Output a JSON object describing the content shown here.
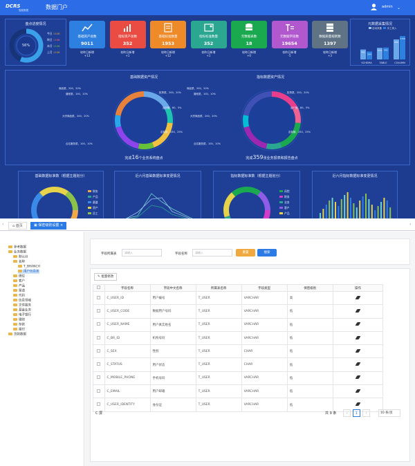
{
  "header": {
    "logo": "DCRS",
    "logo_sub": "智能数据",
    "title": "数据门户",
    "user": "admin"
  },
  "progress_panel": {
    "title": "盘点进度情况",
    "percent": "56%",
    "legend": [
      {
        "label": "今日",
        "value": "1108",
        "color": "#e6a23c"
      },
      {
        "label": "昨日",
        "value": "1108",
        "color": "#f56c6c"
      },
      {
        "label": "本月",
        "value": "1108",
        "color": "#67c23a"
      },
      {
        "label": "上月",
        "value": "1108",
        "color": "#e6a23c"
      }
    ]
  },
  "cards": [
    {
      "label": "基础资产总数",
      "value": "9011",
      "color": "#2d7fe0",
      "icon": "line-chart-icon",
      "sub1": "较昨日新增",
      "sub2": "+13"
    },
    {
      "label": "指标资产总数",
      "value": "352",
      "color": "#ea4b43",
      "icon": "bar-chart-icon",
      "sub1": "较昨日新增",
      "sub2": "+1"
    },
    {
      "label": "基础标准数量",
      "value": "1953",
      "color": "#ee8a28",
      "icon": "document-icon",
      "sub1": "较昨日新增",
      "sub2": "+12"
    },
    {
      "label": "指标标准数量",
      "value": "352",
      "color": "#2aa691",
      "icon": "image-icon",
      "sub1": "较昨日新增",
      "sub2": "+1"
    },
    {
      "label": "元数据表数",
      "value": "18",
      "color": "#1ba94f",
      "icon": "database-icon",
      "sub1": "较昨日新增",
      "sub2": "+0"
    },
    {
      "label": "元数据字段数",
      "value": "19654",
      "color": "#b258cf",
      "icon": "field-icon",
      "sub1": "较昨日新增",
      "sub2": "-5"
    },
    {
      "label": "数据质量规则数",
      "value": "1397",
      "color": "#5f7384",
      "icon": "server-icon",
      "sub1": "较昨日新增",
      "sub2": "+3"
    }
  ],
  "meta_panel": {
    "title": "元数据采集情况",
    "legend": [
      "自动采集",
      "手工录入"
    ],
    "categories": [
      "SCHEMA",
      "TABLE",
      "COLUMN"
    ]
  },
  "chart_data": [
    {
      "type": "bar",
      "title": "元数据采集情况",
      "categories": [
        "SCHEMA",
        "TABLE",
        "COLUMN"
      ],
      "series": [
        {
          "name": "自动采集",
          "values": [
            492,
            574,
            992
          ]
        },
        {
          "name": "手工录入",
          "values": [
            394,
            591,
            1159
          ]
        }
      ]
    },
    {
      "type": "pie",
      "title": "基础数据资产情况",
      "footer_pre": "完成",
      "footer_num": "16",
      "footer_post": "个业务系统盘点",
      "labels": [
        "商品质、200、20%",
        "普帐质、100、10%",
        "大宗商品质、200、20%",
        "合名服务质、100、10%",
        "权责质、200、20%",
        "运行管、80、5%",
        "定制服、250、25%"
      ]
    },
    {
      "type": "pie",
      "title": "指标数据资产情况",
      "footer_pre": "完成",
      "footer_num": "359",
      "footer_post": "张业务报表和报告盘点",
      "labels": [
        "商品质、200、20%",
        "普帐质、100、10%",
        "大宗商品质、200、20%",
        "合名服务质、100、10%",
        "权责质、200、20%",
        "运行管、80、5%",
        "定制服、250、25%"
      ]
    }
  ],
  "lower_panels": {
    "basic_std": "基础数据标准数（根据主题划分）",
    "basic_trend": "近六月基础数据标准变更情况",
    "index_std": "指标数据标准数（根据主题划分）",
    "index_trend": "近六月指标数据标准变更情况",
    "basic_legend": [
      "财务",
      "产品",
      "渠道",
      "资产",
      "员工"
    ],
    "index_legend": [
      "风险",
      "财务",
      "业务",
      "客户",
      "产品"
    ]
  },
  "tabs": [
    {
      "label": "首页"
    },
    {
      "label": "保密级别设置"
    }
  ],
  "tree": [
    "参考数据",
    "业务数据",
    "默认分",
    "名称",
    "T_BRANCH",
    "用户信息表",
    "借位",
    "客户",
    "产品",
    "渠道",
    "代码",
    "信息领域",
    "文件服务",
    "基金业务",
    "电子银行",
    "理财",
    "存款",
    "报付",
    "贷款数据"
  ],
  "search": {
    "label1": "字段所属表",
    "ph1": "请输入",
    "label2": "字段名称",
    "ph2": "请输入",
    "reset": "重置",
    "search": "搜索"
  },
  "toolbar": {
    "batch": "批量修改"
  },
  "table": {
    "headers": [
      "",
      "字段名称",
      "字段中文名称",
      "所属表名称",
      "字段类型",
      "保密级别",
      "操作"
    ],
    "rows": [
      [
        "C_USER_ID",
        "用户编号",
        "T_USER",
        "VARCHAR",
        "高"
      ],
      [
        "C_USER_CODE",
        "数据用户号码",
        "T_USER",
        "VARCHAR",
        "低"
      ],
      [
        "C_USER_NAME",
        "用户真实姓名",
        "T_USER",
        "VARCHAR",
        "低"
      ],
      [
        "C_BR_ID",
        "机构号码",
        "T_USER",
        "VARCHAR",
        "低"
      ],
      [
        "C_SEX",
        "性别",
        "T_USER",
        "CHAR",
        "低"
      ],
      [
        "C_STATUS",
        "用户状态",
        "T_USER",
        "CHAR",
        "低"
      ],
      [
        "C_MOBILE_PHONE",
        "手机号码",
        "T_USER",
        "VARCHAR",
        "低"
      ],
      [
        "C_EMAIL",
        "用户邮箱",
        "T_USER",
        "VARCHAR",
        "低"
      ],
      [
        "C_USER_IDENTITY",
        "身份证",
        "T_USER",
        "VARCHAR",
        "低"
      ]
    ]
  },
  "pager": {
    "total": "共 9 条",
    "page": "1",
    "size": "10 条/页",
    "refresh": "C 屏"
  }
}
